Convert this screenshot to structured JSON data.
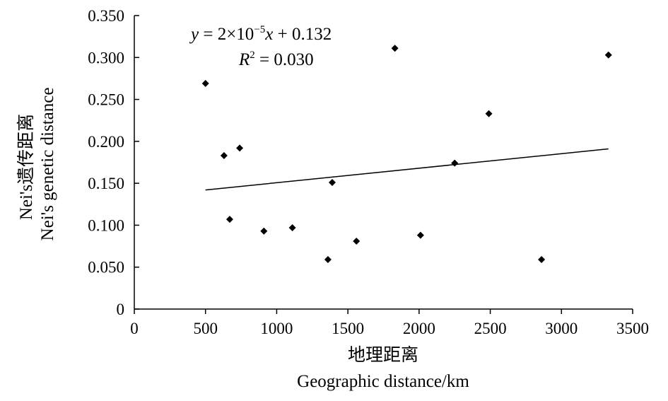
{
  "chart_data": {
    "type": "scatter",
    "xlabel": "地理距离",
    "xlabel_en": "Geographic distance/km",
    "ylabel": "Nei's遗传距离",
    "ylabel_en": "Nei's genetic distance",
    "xlim": [
      0,
      3500
    ],
    "ylim": [
      0,
      0.35
    ],
    "x_ticks": [
      "0",
      "500",
      "1000",
      "1500",
      "2000",
      "2500",
      "3000",
      "3500"
    ],
    "y_ticks": [
      "0",
      "0.050",
      "0.100",
      "0.150",
      "0.200",
      "0.250",
      "0.300",
      "0.350"
    ],
    "grid": false,
    "points": [
      {
        "x": 500,
        "y": 0.269
      },
      {
        "x": 630,
        "y": 0.183
      },
      {
        "x": 670,
        "y": 0.107
      },
      {
        "x": 740,
        "y": 0.192
      },
      {
        "x": 910,
        "y": 0.093
      },
      {
        "x": 1110,
        "y": 0.097
      },
      {
        "x": 1360,
        "y": 0.059
      },
      {
        "x": 1390,
        "y": 0.151
      },
      {
        "x": 1560,
        "y": 0.081
      },
      {
        "x": 1830,
        "y": 0.311
      },
      {
        "x": 2010,
        "y": 0.088
      },
      {
        "x": 2250,
        "y": 0.174
      },
      {
        "x": 2490,
        "y": 0.233
      },
      {
        "x": 2860,
        "y": 0.059
      },
      {
        "x": 3330,
        "y": 0.303
      }
    ],
    "trendline": {
      "x": [
        500,
        3330
      ],
      "y": [
        0.142,
        0.191
      ]
    },
    "equation": {
      "y_var": "y",
      "eq": " = 2×10",
      "exp": "−5",
      "x_var": "x",
      "rest": " + 0.132"
    },
    "r_squared": {
      "label": "R",
      "exp": "2",
      "value": " = 0.030"
    }
  }
}
